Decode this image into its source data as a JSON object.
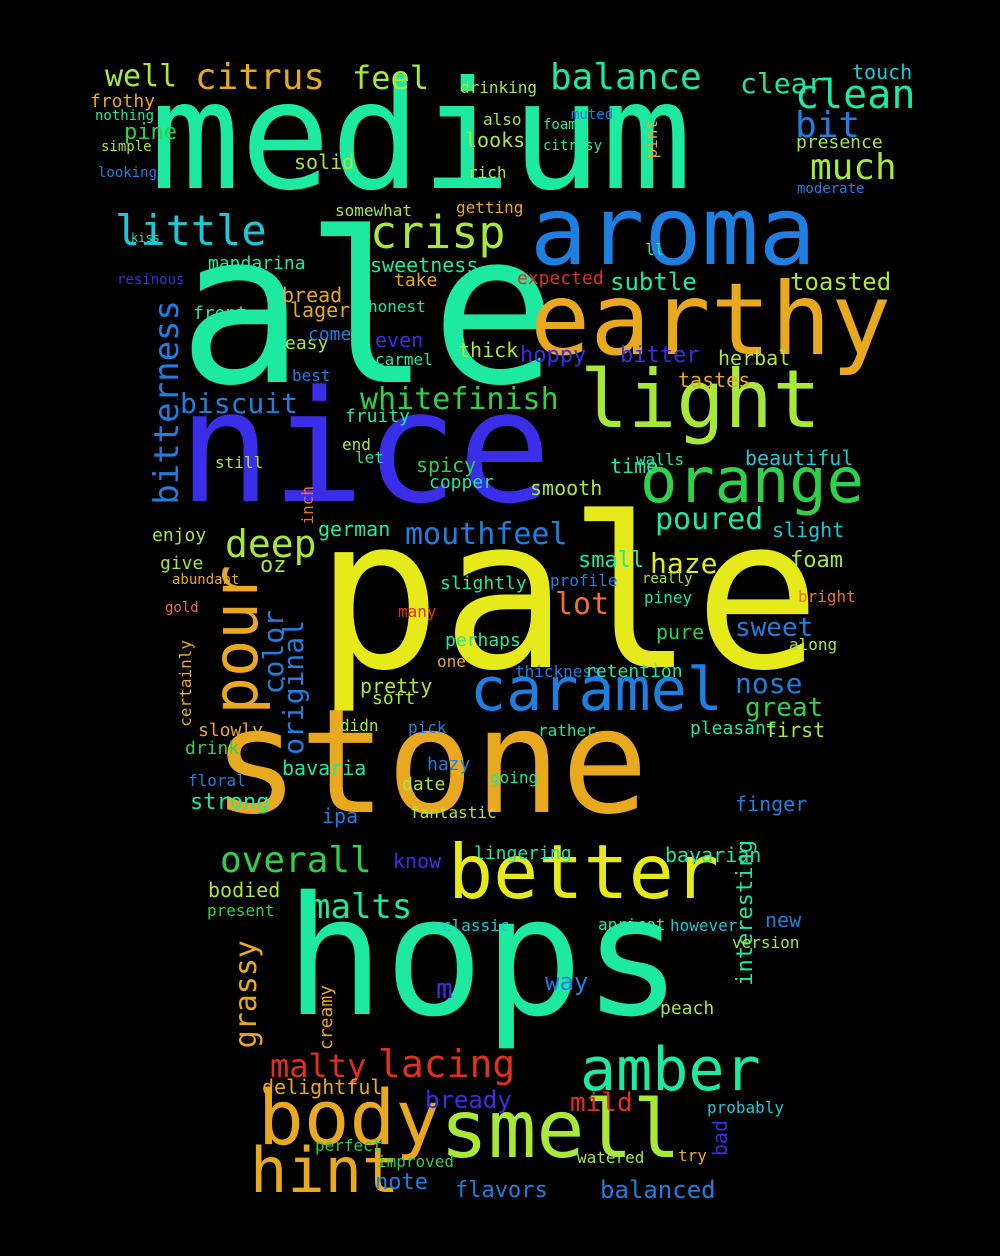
{
  "palette": {
    "background": "#000000",
    "mint": "#1de9a0",
    "yellow": "#e6ea1a",
    "gold": "#e8a820",
    "blue": "#1f7fe0",
    "indigo": "#3a2ee8",
    "lime": "#a8e83a",
    "green": "#2fd04a",
    "cyan": "#1dc8d8",
    "red": "#e03020",
    "orange": "#f07030"
  },
  "words": [
    {
      "text": "medium",
      "c": "mint"
    },
    {
      "text": "ale",
      "c": "mint"
    },
    {
      "text": "nice",
      "c": "indigo"
    },
    {
      "text": "pale",
      "c": "yellow"
    },
    {
      "text": "stone",
      "c": "gold"
    },
    {
      "text": "hops",
      "c": "mint"
    },
    {
      "text": "aroma",
      "c": "blue"
    },
    {
      "text": "earthy",
      "c": "gold"
    },
    {
      "text": "light",
      "c": "lime"
    },
    {
      "text": "orange",
      "c": "green"
    },
    {
      "text": "caramel",
      "c": "blue"
    },
    {
      "text": "better",
      "c": "yellow"
    },
    {
      "text": "smell",
      "c": "lime"
    },
    {
      "text": "body",
      "c": "gold"
    },
    {
      "text": "amber",
      "c": "mint"
    },
    {
      "text": "hint",
      "c": "gold"
    },
    {
      "text": "pour",
      "c": "gold"
    },
    {
      "text": "bitterness",
      "c": "blue"
    },
    {
      "text": "little",
      "c": "cyan"
    },
    {
      "text": "crisp",
      "c": "lime"
    },
    {
      "text": "balance",
      "c": "mint"
    },
    {
      "text": "clean",
      "c": "mint"
    },
    {
      "text": "citrus",
      "c": "gold"
    },
    {
      "text": "well",
      "c": "lime"
    },
    {
      "text": "feel",
      "c": "lime"
    },
    {
      "text": "much",
      "c": "lime"
    },
    {
      "text": "bit",
      "c": "blue"
    },
    {
      "text": "clear",
      "c": "mint"
    },
    {
      "text": "deep",
      "c": "lime"
    },
    {
      "text": "mouthfeel",
      "c": "blue"
    },
    {
      "text": "whitefinish",
      "c": "green"
    },
    {
      "text": "poured",
      "c": "mint"
    },
    {
      "text": "malts",
      "c": "mint"
    },
    {
      "text": "overall",
      "c": "green"
    },
    {
      "text": "lacing",
      "c": "red"
    },
    {
      "text": "malty",
      "c": "red"
    },
    {
      "text": "grassy",
      "c": "gold"
    },
    {
      "text": "color",
      "c": "blue"
    },
    {
      "text": "original",
      "c": "blue"
    },
    {
      "text": "biscuit",
      "c": "blue"
    },
    {
      "text": "lot",
      "c": "orange"
    },
    {
      "text": "sweet",
      "c": "blue"
    },
    {
      "text": "nose",
      "c": "blue"
    },
    {
      "text": "great",
      "c": "green"
    },
    {
      "text": "haze",
      "c": "yellow"
    },
    {
      "text": "foam",
      "c": "lime"
    },
    {
      "text": "toasted",
      "c": "lime"
    },
    {
      "text": "subtle",
      "c": "mint"
    },
    {
      "text": "mild",
      "c": "red"
    },
    {
      "text": "bready",
      "c": "indigo"
    },
    {
      "text": "flavors",
      "c": "blue"
    },
    {
      "text": "balanced",
      "c": "blue"
    },
    {
      "text": "note",
      "c": "blue"
    },
    {
      "text": "way",
      "c": "blue"
    },
    {
      "text": "m",
      "c": "indigo"
    },
    {
      "text": "interesting",
      "c": "mint"
    },
    {
      "text": "bad",
      "c": "indigo"
    },
    {
      "text": "mandarina",
      "c": "mint"
    },
    {
      "text": "sweetness",
      "c": "mint"
    },
    {
      "text": "bread",
      "c": "gold"
    },
    {
      "text": "lager",
      "c": "gold"
    },
    {
      "text": "solid",
      "c": "lime"
    },
    {
      "text": "bitter",
      "c": "indigo"
    },
    {
      "text": "herbal",
      "c": "lime"
    },
    {
      "text": "tastes",
      "c": "gold"
    },
    {
      "text": "beautiful",
      "c": "cyan"
    },
    {
      "text": "slight",
      "c": "cyan"
    },
    {
      "text": "german",
      "c": "mint"
    },
    {
      "text": "spicy",
      "c": "green"
    },
    {
      "text": "smooth",
      "c": "lime"
    },
    {
      "text": "time",
      "c": "mint"
    },
    {
      "text": "hoppy",
      "c": "indigo"
    },
    {
      "text": "thick",
      "c": "lime"
    },
    {
      "text": "easy",
      "c": "lime"
    },
    {
      "text": "even",
      "c": "indigo"
    },
    {
      "text": "pine",
      "c": "green"
    },
    {
      "text": "frothy",
      "c": "gold"
    },
    {
      "text": "looks",
      "c": "lime"
    },
    {
      "text": "somewhat",
      "c": "lime"
    },
    {
      "text": "getting",
      "c": "gold"
    },
    {
      "text": "touch",
      "c": "cyan"
    },
    {
      "text": "presence",
      "c": "lime"
    },
    {
      "text": "moderate",
      "c": "blue"
    },
    {
      "text": "enjoy",
      "c": "lime"
    },
    {
      "text": "oz",
      "c": "lime"
    },
    {
      "text": "give",
      "c": "lime"
    },
    {
      "text": "small",
      "c": "mint"
    },
    {
      "text": "profile",
      "c": "blue"
    },
    {
      "text": "slightly",
      "c": "mint"
    },
    {
      "text": "perhaps",
      "c": "mint"
    },
    {
      "text": "piney",
      "c": "mint"
    },
    {
      "text": "pure",
      "c": "green"
    },
    {
      "text": "pretty",
      "c": "lime"
    },
    {
      "text": "didn",
      "c": "lime"
    },
    {
      "text": "soft",
      "c": "lime"
    },
    {
      "text": "thickness",
      "c": "blue"
    },
    {
      "text": "one",
      "c": "gold"
    },
    {
      "text": "retention",
      "c": "mint"
    },
    {
      "text": "pleasant",
      "c": "mint"
    },
    {
      "text": "first",
      "c": "lime"
    },
    {
      "text": "strong",
      "c": "mint"
    },
    {
      "text": "bavaria",
      "c": "mint"
    },
    {
      "text": "ipa",
      "c": "blue"
    },
    {
      "text": "date",
      "c": "lime"
    },
    {
      "text": "hazy",
      "c": "blue"
    },
    {
      "text": "going",
      "c": "mint"
    },
    {
      "text": "drink",
      "c": "green"
    },
    {
      "text": "floral",
      "c": "blue"
    },
    {
      "text": "slowly",
      "c": "gold"
    },
    {
      "text": "finger",
      "c": "blue"
    },
    {
      "text": "bavarian",
      "c": "mint"
    },
    {
      "text": "know",
      "c": "indigo"
    },
    {
      "text": "lingering",
      "c": "mint"
    },
    {
      "text": "bodied",
      "c": "lime"
    },
    {
      "text": "present",
      "c": "green"
    },
    {
      "text": "classic",
      "c": "cyan"
    },
    {
      "text": "apricot",
      "c": "mint"
    },
    {
      "text": "however",
      "c": "cyan"
    },
    {
      "text": "new",
      "c": "blue"
    },
    {
      "text": "version",
      "c": "lime"
    },
    {
      "text": "creamy",
      "c": "gold"
    },
    {
      "text": "peach",
      "c": "lime"
    },
    {
      "text": "delightful",
      "c": "gold"
    },
    {
      "text": "probably",
      "c": "cyan"
    },
    {
      "text": "perfect",
      "c": "green"
    },
    {
      "text": "improved",
      "c": "green"
    },
    {
      "text": "watered",
      "c": "lime"
    },
    {
      "text": "try",
      "c": "gold"
    },
    {
      "text": "fruity",
      "c": "mint"
    },
    {
      "text": "end",
      "c": "lime"
    },
    {
      "text": "still",
      "c": "lime"
    },
    {
      "text": "let",
      "c": "mint"
    },
    {
      "text": "walls",
      "c": "mint"
    },
    {
      "text": "copper",
      "c": "mint"
    },
    {
      "text": "front",
      "c": "mint"
    },
    {
      "text": "honest",
      "c": "mint"
    },
    {
      "text": "take",
      "c": "gold"
    },
    {
      "text": "expected",
      "c": "red"
    },
    {
      "text": "ll",
      "c": "mint"
    },
    {
      "text": "come",
      "c": "blue"
    },
    {
      "text": "best",
      "c": "blue"
    },
    {
      "text": "carmel",
      "c": "mint"
    },
    {
      "text": "also",
      "c": "lime"
    },
    {
      "text": "rich",
      "c": "lime"
    },
    {
      "text": "muted",
      "c": "blue"
    },
    {
      "text": "foamy",
      "c": "mint"
    },
    {
      "text": "citrusy",
      "c": "mint"
    },
    {
      "text": "drinking",
      "c": "lime"
    },
    {
      "text": "simple",
      "c": "lime"
    },
    {
      "text": "looking",
      "c": "blue"
    },
    {
      "text": "kiss",
      "c": "mint"
    },
    {
      "text": "certainly",
      "c": "gold"
    },
    {
      "text": "gold",
      "c": "orange"
    },
    {
      "text": "many",
      "c": "red"
    },
    {
      "text": "along",
      "c": "lime"
    },
    {
      "text": "bright",
      "c": "orange"
    },
    {
      "text": "pick",
      "c": "blue"
    },
    {
      "text": "rather",
      "c": "mint"
    },
    {
      "text": "fantastic",
      "c": "lime"
    },
    {
      "text": "really",
      "c": "lime"
    },
    {
      "text": "nothing",
      "c": "mint"
    },
    {
      "text": "abundant",
      "c": "gold"
    },
    {
      "text": "inch",
      "c": "orange"
    },
    {
      "text": "pint",
      "c": "gold"
    },
    {
      "text": "resinous",
      "c": "indigo"
    },
    {
      "text": "s",
      "c": "mint"
    }
  ]
}
